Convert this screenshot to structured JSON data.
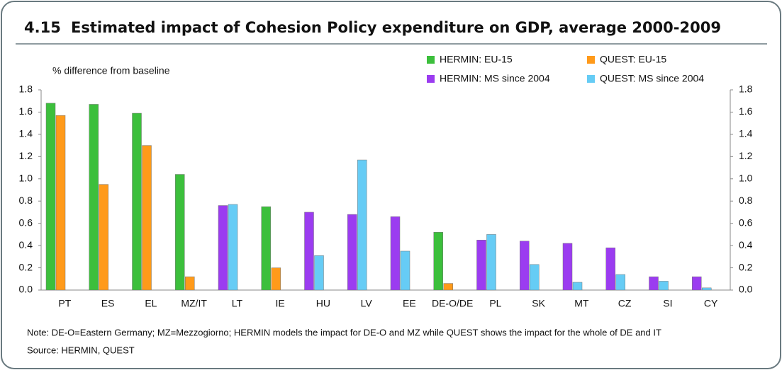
{
  "chart_data": {
    "type": "bar",
    "number": "4.15",
    "title": "Estimated impact of Cohesion Policy expenditure on GDP, average 2000-2009",
    "y_label": "% difference from baseline",
    "categories": [
      "PT",
      "ES",
      "EL",
      "MZ/IT",
      "LT",
      "IE",
      "HU",
      "LV",
      "EE",
      "DE-O/DE",
      "PL",
      "SK",
      "MT",
      "CZ",
      "SI",
      "CY"
    ],
    "series": [
      {
        "name": "HERMIN: EU-15",
        "color": "#3cbf3c",
        "values": [
          1.68,
          1.67,
          1.59,
          1.04,
          null,
          0.75,
          null,
          null,
          null,
          0.52,
          null,
          null,
          null,
          null,
          null,
          null
        ]
      },
      {
        "name": "QUEST: EU-15",
        "color": "#ff9a1a",
        "values": [
          1.57,
          0.95,
          1.3,
          0.12,
          null,
          0.2,
          null,
          null,
          null,
          0.06,
          null,
          null,
          null,
          null,
          null,
          null
        ]
      },
      {
        "name": "HERMIN: MS since 2004",
        "color": "#9b3cf0",
        "values": [
          null,
          null,
          null,
          null,
          0.76,
          null,
          0.7,
          0.68,
          0.66,
          null,
          0.45,
          0.44,
          0.42,
          0.38,
          0.12,
          0.12
        ]
      },
      {
        "name": "QUEST: MS since 2004",
        "color": "#66ccf5",
        "values": [
          null,
          null,
          null,
          null,
          0.77,
          null,
          0.31,
          1.17,
          0.35,
          null,
          0.5,
          0.23,
          0.07,
          0.14,
          0.08,
          0.02
        ]
      }
    ],
    "ylim": [
      0,
      1.8
    ],
    "yticks": [
      {
        "value": 0,
        "label": "0.0"
      },
      0.2,
      0.4,
      0.6,
      0.8,
      {
        "value": 1,
        "label": "1.0"
      },
      1.2,
      1.4,
      1.6,
      1.8
    ],
    "y2lim": [
      0,
      1.8
    ],
    "y2ticks": [
      {
        "value": 0,
        "label": "0.0"
      },
      0.2,
      0.4,
      0.6,
      0.8,
      {
        "value": 1,
        "label": "1.0"
      },
      1.2,
      1.4,
      1.6,
      1.8
    ],
    "grid": false,
    "legend": "top-right",
    "note": "Note: DE-O=Eastern Germany; MZ=Mezzogiorno; HERMIN models the impact for DE-O and MZ while QUEST shows the impact for the whole of DE and IT",
    "source": "Source: HERMIN, QUEST"
  }
}
